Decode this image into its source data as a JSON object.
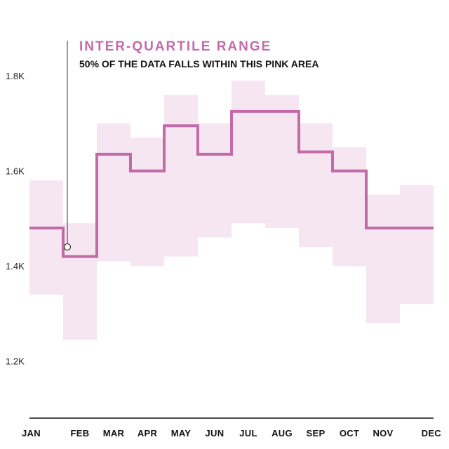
{
  "colors": {
    "median_line": "#c46aa8",
    "iqr_fill": "#f5e6f1",
    "annotation_title": "#c46aa8",
    "axis": "#111111",
    "pointer": "#555555"
  },
  "annotation": {
    "title": "INTER-QUARTILE RANGE",
    "subtitle": "50% OF THE DATA FALLS WITHIN THIS PINK AREA",
    "points_to": "FEB"
  },
  "chart_data": {
    "type": "area",
    "categories": [
      "JAN",
      "FEB",
      "MAR",
      "APR",
      "MAY",
      "JUN",
      "JUL",
      "AUG",
      "SEP",
      "OCT",
      "NOV",
      "DEC"
    ],
    "y_tick_labels": [
      "1.2K",
      "1.4K",
      "1.6K",
      "1.8K"
    ],
    "y_ticks": [
      1200,
      1400,
      1600,
      1800
    ],
    "ylim": [
      1080,
      1930
    ],
    "grid": false,
    "series": [
      {
        "values": [
          1480,
          1420,
          1635,
          1600,
          1695,
          1635,
          1725,
          1725,
          1640,
          1600,
          1480,
          1480
        ]
      },
      {
        "low": [
          1340,
          1245,
          1410,
          1400,
          1420,
          1460,
          1490,
          1480,
          1440,
          1400,
          1280,
          1320
        ],
        "high": [
          1580,
          1490,
          1700,
          1670,
          1760,
          1700,
          1790,
          1760,
          1700,
          1650,
          1550,
          1570
        ]
      }
    ]
  }
}
